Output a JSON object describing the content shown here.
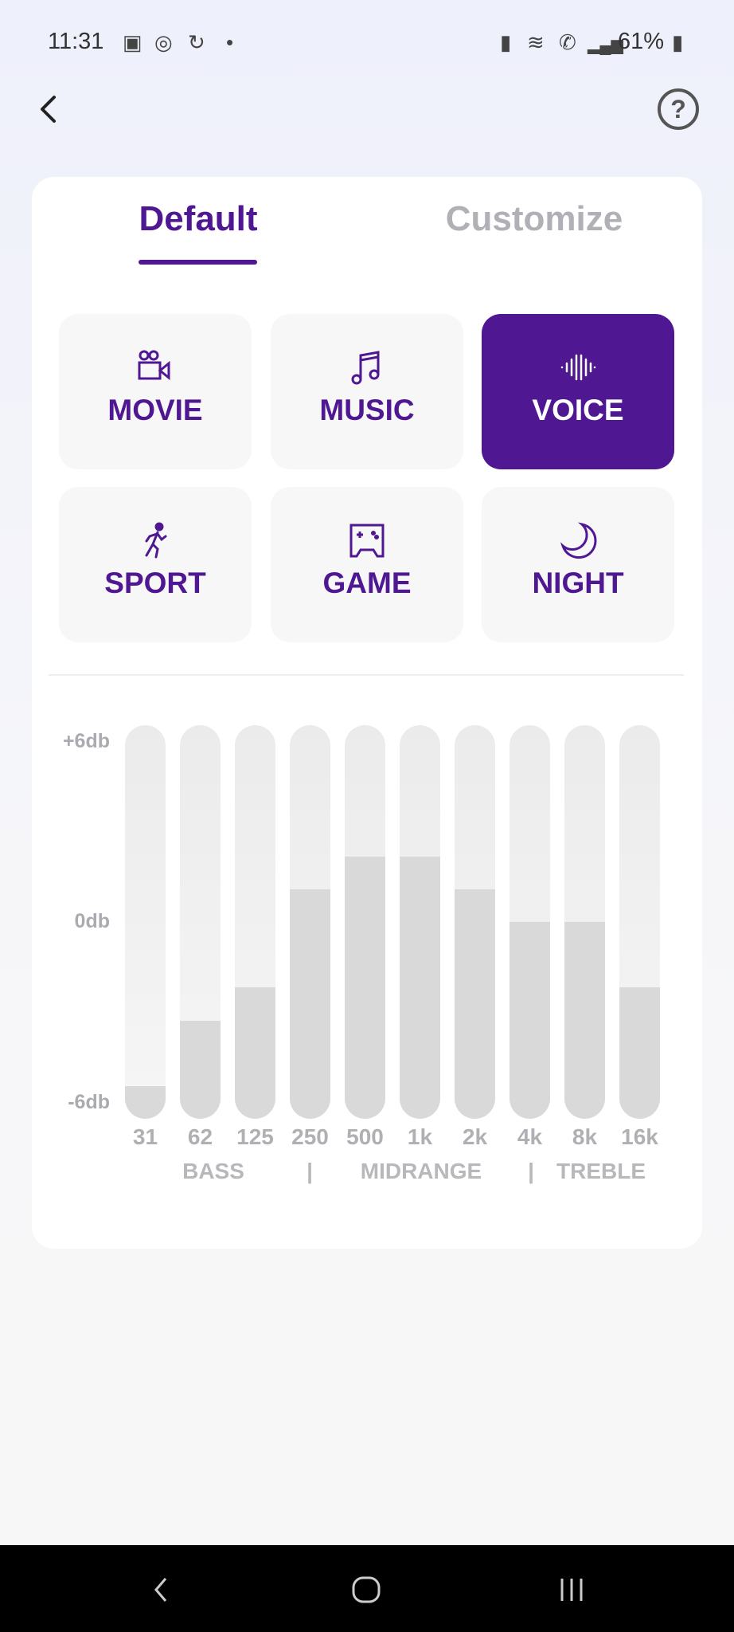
{
  "status_bar": {
    "time": "11:31",
    "battery": "61%"
  },
  "tabs": [
    {
      "label": "Default",
      "active": true
    },
    {
      "label": "Customize",
      "active": false
    }
  ],
  "presets": [
    {
      "label": "MOVIE",
      "icon": "movie-camera-icon",
      "selected": false
    },
    {
      "label": "MUSIC",
      "icon": "music-note-icon",
      "selected": false
    },
    {
      "label": "VOICE",
      "icon": "sound-wave-icon",
      "selected": true
    },
    {
      "label": "SPORT",
      "icon": "running-icon",
      "selected": false
    },
    {
      "label": "GAME",
      "icon": "gamepad-icon",
      "selected": false
    },
    {
      "label": "NIGHT",
      "icon": "moon-icon",
      "selected": false
    }
  ],
  "accent_color": "#4f1792",
  "chart_data": {
    "type": "bar",
    "categories": [
      "31",
      "62",
      "125",
      "250",
      "500",
      "1k",
      "2k",
      "4k",
      "8k",
      "16k"
    ],
    "values": [
      -5,
      -3,
      -2,
      1,
      2,
      2,
      1,
      0,
      0,
      -2
    ],
    "ylim": [
      -6,
      6
    ],
    "ytick_labels": [
      "+6db",
      "0db",
      "-6db"
    ],
    "groups": [
      "BASS",
      "|",
      "MIDRANGE",
      "|",
      "TREBLE"
    ]
  }
}
